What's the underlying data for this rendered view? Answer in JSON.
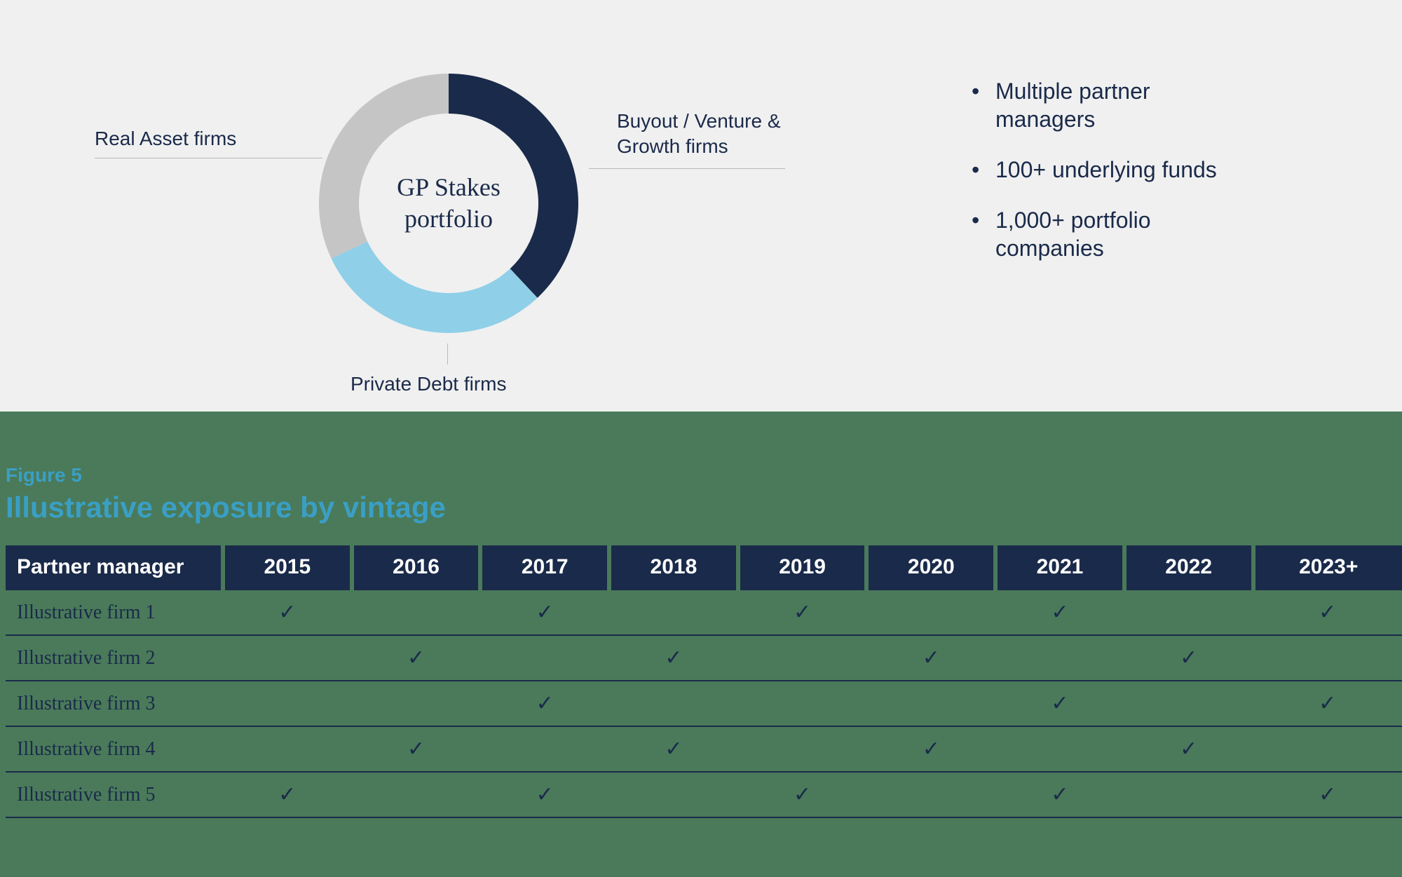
{
  "top": {
    "background_color": "#f0f0f0",
    "donut": {
      "type": "donut",
      "center_label_line1": "GP Stakes",
      "center_label_line2": "portfolio",
      "center_fontsize": 36,
      "center_color": "#1a2a4a",
      "outer_radius": 185,
      "inner_radius": 128,
      "slices": [
        {
          "label_line1": "Buyout / Venture &",
          "label_line2": "Growth firms",
          "value": 38,
          "color": "#1a2a4a",
          "start_angle_deg": 0
        },
        {
          "label_line1": "Private Debt firms",
          "label_line2": "",
          "value": 30,
          "color": "#8fcfe8",
          "start_angle_deg": 137
        },
        {
          "label_line1": "Real Asset firms",
          "label_line2": "",
          "value": 32,
          "color": "#c5c5c5",
          "start_angle_deg": 245
        }
      ],
      "label_color": "#1a2a4a",
      "label_fontsize": 28,
      "leader_color": "#b8b8b8"
    },
    "bullets": {
      "items": [
        "Multiple partner managers",
        "100+ underlying funds",
        "1,000+ portfolio companies"
      ],
      "fontsize": 32,
      "color": "#1a2a4a"
    }
  },
  "bottom": {
    "background_color": "#4a7a5a",
    "figure_number": "Figure 5",
    "figure_title": "Illustrative exposure by vintage",
    "title_color": "#3a9fc5",
    "table": {
      "header_bg": "#1a2a4a",
      "header_fg": "#ffffff",
      "cell_border_color": "#1a2a4a",
      "check_glyph": "✓",
      "columns": [
        "Partner manager",
        "2015",
        "2016",
        "2017",
        "2018",
        "2019",
        "2020",
        "2021",
        "2022",
        "2023+"
      ],
      "rows": [
        {
          "label": "Illustrative firm 1",
          "marks": [
            true,
            false,
            true,
            false,
            true,
            false,
            true,
            false,
            true
          ]
        },
        {
          "label": "Illustrative firm 2",
          "marks": [
            false,
            true,
            false,
            true,
            false,
            true,
            false,
            true,
            false
          ]
        },
        {
          "label": "Illustrative firm 3",
          "marks": [
            false,
            false,
            true,
            false,
            false,
            false,
            true,
            false,
            true
          ]
        },
        {
          "label": "Illustrative firm 4",
          "marks": [
            false,
            true,
            false,
            true,
            false,
            true,
            false,
            true,
            false
          ]
        },
        {
          "label": "Illustrative firm 5",
          "marks": [
            true,
            false,
            true,
            false,
            true,
            false,
            true,
            false,
            true
          ]
        }
      ]
    }
  }
}
